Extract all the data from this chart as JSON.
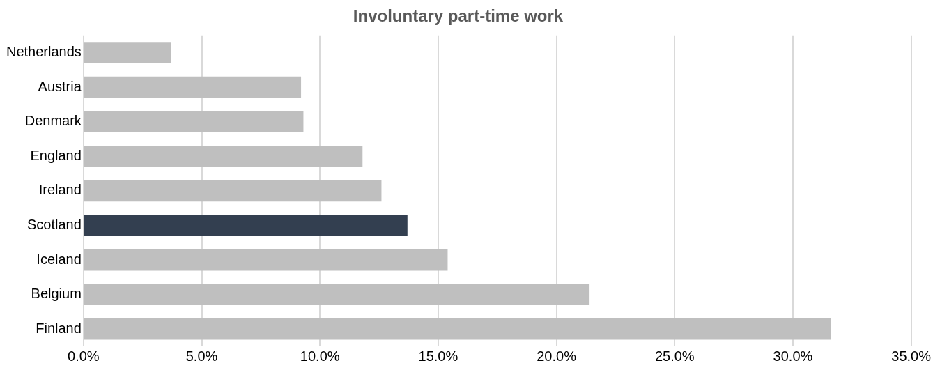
{
  "chart_data": {
    "type": "bar",
    "orientation": "horizontal",
    "title": "Involuntary part-time work",
    "categories": [
      "Netherlands",
      "Austria",
      "Denmark",
      "England",
      "Ireland",
      "Scotland",
      "Iceland",
      "Belgium",
      "Finland"
    ],
    "values": [
      3.7,
      9.2,
      9.3,
      11.8,
      12.6,
      13.7,
      15.4,
      21.4,
      31.6
    ],
    "colors": [
      "#bfbfbf",
      "#bfbfbf",
      "#bfbfbf",
      "#bfbfbf",
      "#bfbfbf",
      "#333f50",
      "#bfbfbf",
      "#bfbfbf",
      "#bfbfbf"
    ],
    "xlim": [
      0,
      35
    ],
    "xticks": [
      {
        "value": 0,
        "label": "0.0%"
      },
      {
        "value": 5,
        "label": "5.0%"
      },
      {
        "value": 10,
        "label": "10.0%"
      },
      {
        "value": 15,
        "label": "15.0%"
      },
      {
        "value": 20,
        "label": "20.0%"
      },
      {
        "value": 25,
        "label": "25.0%"
      },
      {
        "value": 30,
        "label": "30.0%"
      },
      {
        "value": 35,
        "label": "35.0%"
      }
    ],
    "grid": "x",
    "legend": false
  }
}
